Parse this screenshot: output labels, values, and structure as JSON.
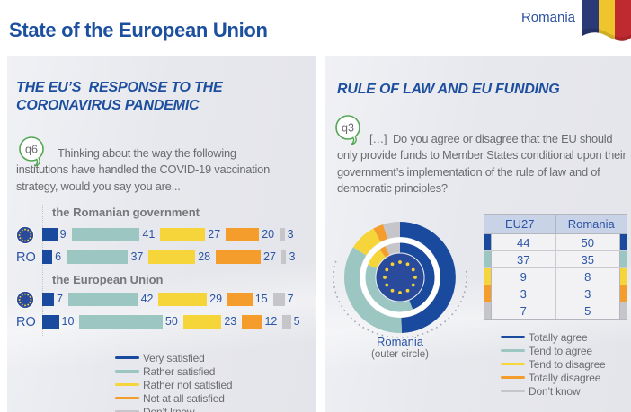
{
  "header": {
    "title": "State of the European Union",
    "country": "Romania"
  },
  "left_panel": {
    "title": "THE EU’S  RESPONSE TO THE CORONAVIRUS PANDEMIC",
    "badge": "q6",
    "question": "Thinking about the way the following institutions have handled the COVID-19 vaccination strategy, would you say you are...",
    "legend": [
      "Very satisfied",
      "Rather satisfied",
      "Rather not satisfied",
      "Not at all satisfied",
      "Don’t know"
    ]
  },
  "right_panel": {
    "title": "RULE OF LAW AND EU FUNDING",
    "badge": "q3",
    "question": "[…]  Do you agree or disagree that the EU should only provide funds to Member States conditional upon their government’s implementation of the rule of law and of democratic principles?",
    "donut_caption_line1": "Romania",
    "donut_caption_line2": "(outer circle)",
    "legend": [
      "Totally agree",
      "Tend to agree",
      "Tend to disagree",
      "Totally disagree",
      "Don’t know"
    ]
  },
  "palette": {
    "accent_blue": "#1d4f9e",
    "text_gray": "#6b6c70",
    "value_blue": "#2b55a5",
    "bubble_green": "#54a754"
  },
  "chart_data": [
    {
      "type": "bar",
      "subtype": "stacked-horizontal",
      "question": "q6",
      "title": "Satisfaction with handling of the COVID-19 vaccination strategy",
      "series_labels": [
        "Very satisfied",
        "Rather satisfied",
        "Rather not satisfied",
        "Not at all satisfied",
        "Don’t know"
      ],
      "colors": [
        "#1a4a9d",
        "#9cc6c1",
        "#f6d53a",
        "#f49d2d",
        "#c6c6ca"
      ],
      "groups": [
        {
          "label": "the Romanian government",
          "rows": [
            {
              "label": "EU",
              "values": [
                9,
                41,
                27,
                20,
                3
              ]
            },
            {
              "label": "RO",
              "values": [
                6,
                37,
                28,
                27,
                3
              ]
            }
          ]
        },
        {
          "label": "the European Union",
          "rows": [
            {
              "label": "EU",
              "values": [
                7,
                42,
                29,
                15,
                7
              ]
            },
            {
              "label": "RO",
              "values": [
                10,
                50,
                23,
                12,
                5
              ]
            }
          ]
        }
      ]
    },
    {
      "type": "pie",
      "subtype": "double-donut",
      "question": "q3",
      "labels": [
        "Totally agree",
        "Tend to agree",
        "Tend to disagree",
        "Totally disagree",
        "Don’t know"
      ],
      "colors": [
        "#1a4a9d",
        "#9cc6c1",
        "#f6d53a",
        "#f49d2d",
        "#c6c6ca"
      ],
      "rings": [
        {
          "name": "Romania",
          "position": "outer",
          "values": [
            50,
            35,
            8,
            3,
            5
          ]
        },
        {
          "name": "EU27",
          "position": "inner",
          "values": [
            44,
            37,
            9,
            3,
            7
          ]
        }
      ]
    },
    {
      "type": "table",
      "question": "q3",
      "columns": [
        "EU27",
        "Romania"
      ],
      "row_labels": [
        "Totally agree",
        "Tend to agree",
        "Tend to disagree",
        "Totally disagree",
        "Don’t know"
      ],
      "row_colors": [
        "#1a4a9d",
        "#9cc6c1",
        "#f6d53a",
        "#f49d2d",
        "#c6c6ca"
      ],
      "rows": [
        [
          44,
          50
        ],
        [
          37,
          35
        ],
        [
          9,
          8
        ],
        [
          3,
          3
        ],
        [
          7,
          5
        ]
      ]
    }
  ]
}
